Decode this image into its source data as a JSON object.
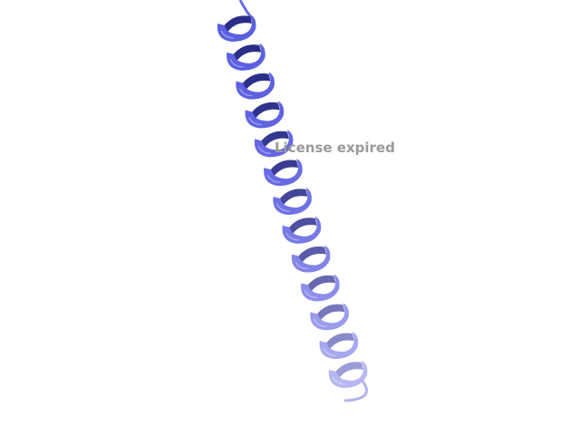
{
  "watermark": {
    "text": "License expired"
  },
  "structure": {
    "representation": "cartoon",
    "secondary_structure": "alpha-helix",
    "color_start": "#5b5fe0",
    "color_end": "#b7b8f2",
    "background": "#ffffff"
  }
}
